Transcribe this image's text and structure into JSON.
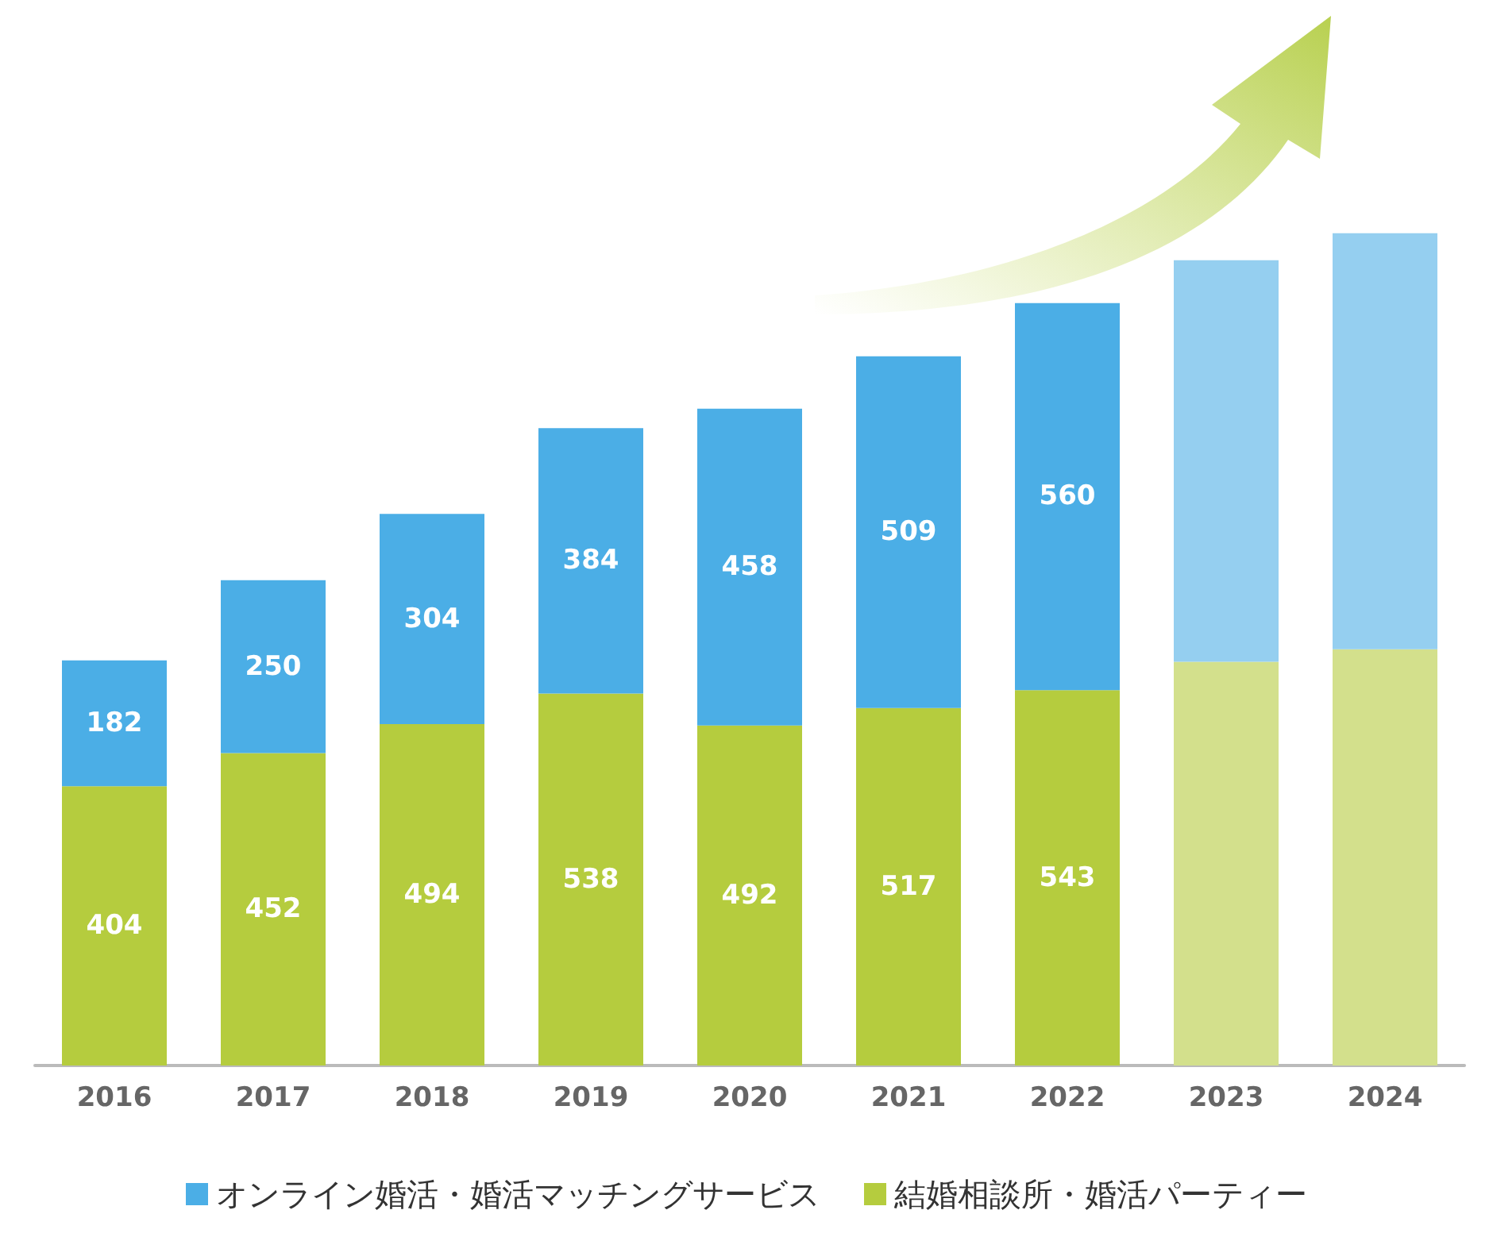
{
  "chart_data": {
    "type": "bar",
    "stacked": true,
    "categories": [
      "2016",
      "2017",
      "2018",
      "2019",
      "2020",
      "2021",
      "2022",
      "2023",
      "2024"
    ],
    "series": [
      {
        "name": "結婚相談所・婚活パーティー",
        "color": "#b5cc3e",
        "colors": [
          "#b5cc3e",
          "#b5cc3e",
          "#b5cc3e",
          "#b5cc3e",
          "#b5cc3e",
          "#b5cc3e",
          "#b5cc3e",
          "#d3e08c",
          "#d3e08c"
        ],
        "values": [
          404,
          452,
          494,
          538,
          492,
          517,
          543,
          584,
          602
        ],
        "value_labels": [
          "404",
          "452",
          "494",
          "538",
          "492",
          "517",
          "543",
          null,
          null
        ]
      },
      {
        "name": "オンライン婚活・婚活マッチングサービス",
        "color": "#4baee6",
        "colors": [
          "#4baee6",
          "#4baee6",
          "#4baee6",
          "#4baee6",
          "#4baee6",
          "#4baee6",
          "#4baee6",
          "#95cff0",
          "#95cff0"
        ],
        "values": [
          182,
          250,
          304,
          384,
          458,
          509,
          560,
          581,
          602
        ],
        "value_labels": [
          "182",
          "250",
          "304",
          "384",
          "458",
          "509",
          "560",
          null,
          null
        ]
      }
    ],
    "legend": "bottom"
  }
}
